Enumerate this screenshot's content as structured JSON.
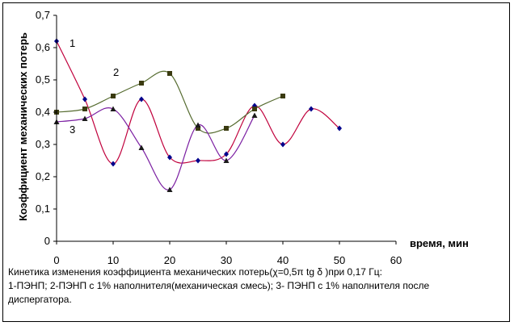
{
  "chart_data": {
    "type": "line",
    "xlabel": "время, мин",
    "ylabel": "Коэффициент механических потерь",
    "xlim": [
      0,
      60
    ],
    "ylim": [
      0,
      0.7
    ],
    "x_ticks": [
      "0",
      "10",
      "20",
      "30",
      "40",
      "50",
      "60"
    ],
    "y_ticks": [
      "0",
      "0,1",
      "0,2",
      "0,3",
      "0,4",
      "0,5",
      "0,6",
      "0,7"
    ],
    "grid": false,
    "series": [
      {
        "name": "1",
        "color": "#c0003c",
        "marker": "diamond",
        "marker_color": "#00008b",
        "x": [
          0,
          5,
          10,
          15,
          20,
          25,
          30,
          35,
          40,
          45,
          50
        ],
        "y": [
          0.62,
          0.44,
          0.24,
          0.44,
          0.26,
          0.25,
          0.27,
          0.42,
          0.3,
          0.41,
          0.35
        ]
      },
      {
        "name": "2",
        "color": "#556b2f",
        "marker": "square",
        "marker_color": "#3a3a10",
        "x": [
          0,
          5,
          10,
          15,
          20,
          25,
          30,
          35,
          40
        ],
        "y": [
          0.4,
          0.41,
          0.45,
          0.49,
          0.52,
          0.35,
          0.35,
          0.41,
          0.45
        ]
      },
      {
        "name": "3",
        "color": "#7b1fa2",
        "marker": "triangle",
        "marker_color": "#1a1a1a",
        "x": [
          0,
          5,
          10,
          15,
          20,
          25,
          30,
          35
        ],
        "y": [
          0.37,
          0.38,
          0.41,
          0.29,
          0.16,
          0.36,
          0.25,
          0.39
        ]
      }
    ]
  },
  "caption": {
    "line1": "Кинетика изменения коэффициента  механических  потерь(χ=0,5π tg δ )при 0,17 Гц:",
    "line2": "1-ПЭНП; 2-ПЭНП с 1% наполнителя(механическая смесь); 3- ПЭНП с 1% наполнителя после",
    "line3": "диспергатора."
  }
}
